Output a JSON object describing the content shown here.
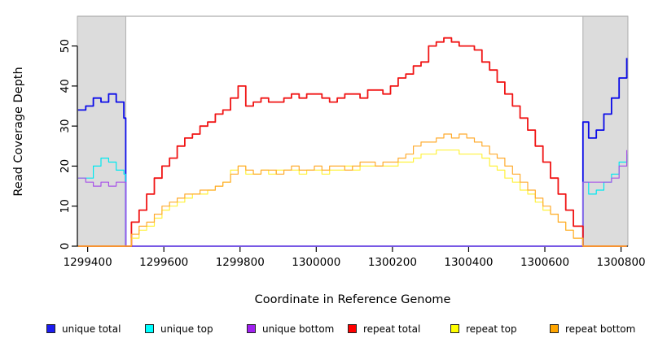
{
  "figure": {
    "background_color": "#FFFFFF",
    "frame_line_color": "#ADADAD",
    "axis_color": "#000000",
    "shaded_region_fill": "#DCDCDC",
    "shaded_region_border": "#ADADAD"
  },
  "chart_data": {
    "type": "line",
    "title": "",
    "xlabel": "Coordinate in Reference Genome",
    "ylabel": "Read Coverage Depth",
    "xlim": [
      1299373,
      1300818
    ],
    "ylim": [
      0,
      57
    ],
    "x_ticks": [
      1299400,
      1299600,
      1299800,
      1300000,
      1300200,
      1300400,
      1300600,
      1300800
    ],
    "y_ticks": [
      0,
      10,
      20,
      30,
      40,
      50
    ],
    "grid": false,
    "line_style": "step-after",
    "legend_position": "bottom",
    "shaded_regions": [
      {
        "x0": 1299373,
        "x1": 1299500
      },
      {
        "x0": 1300700,
        "x1": 1300818
      }
    ],
    "x": [
      1299375,
      1299395,
      1299415,
      1299435,
      1299455,
      1299475,
      1299495,
      1299500,
      1299515,
      1299535,
      1299555,
      1299575,
      1299595,
      1299615,
      1299635,
      1299655,
      1299675,
      1299695,
      1299715,
      1299735,
      1299755,
      1299775,
      1299795,
      1299815,
      1299835,
      1299855,
      1299875,
      1299895,
      1299915,
      1299935,
      1299955,
      1299975,
      1299995,
      1300015,
      1300035,
      1300055,
      1300075,
      1300095,
      1300115,
      1300135,
      1300155,
      1300175,
      1300195,
      1300215,
      1300235,
      1300255,
      1300275,
      1300295,
      1300315,
      1300335,
      1300355,
      1300375,
      1300395,
      1300415,
      1300435,
      1300455,
      1300475,
      1300495,
      1300515,
      1300535,
      1300555,
      1300575,
      1300595,
      1300615,
      1300635,
      1300655,
      1300675,
      1300700,
      1300715,
      1300735,
      1300755,
      1300775,
      1300795,
      1300815
    ],
    "series": [
      {
        "name": "unique total",
        "color": "#0B0BE8",
        "width": 1.8,
        "values": [
          34,
          35,
          37,
          36,
          38,
          36,
          32,
          0,
          0,
          0,
          0,
          0,
          0,
          0,
          0,
          0,
          0,
          0,
          0,
          0,
          0,
          0,
          0,
          0,
          0,
          0,
          0,
          0,
          0,
          0,
          0,
          0,
          0,
          0,
          0,
          0,
          0,
          0,
          0,
          0,
          0,
          0,
          0,
          0,
          0,
          0,
          0,
          0,
          0,
          0,
          0,
          0,
          0,
          0,
          0,
          0,
          0,
          0,
          0,
          0,
          0,
          0,
          0,
          0,
          0,
          0,
          0,
          31,
          27,
          29,
          33,
          37,
          42,
          47
        ]
      },
      {
        "name": "unique top",
        "color": "#00E8F0",
        "width": 1.2,
        "values": [
          17,
          17,
          20,
          22,
          21,
          19,
          18,
          0,
          0,
          0,
          0,
          0,
          0,
          0,
          0,
          0,
          0,
          0,
          0,
          0,
          0,
          0,
          0,
          0,
          0,
          0,
          0,
          0,
          0,
          0,
          0,
          0,
          0,
          0,
          0,
          0,
          0,
          0,
          0,
          0,
          0,
          0,
          0,
          0,
          0,
          0,
          0,
          0,
          0,
          0,
          0,
          0,
          0,
          0,
          0,
          0,
          0,
          0,
          0,
          0,
          0,
          0,
          0,
          0,
          0,
          0,
          0,
          16,
          13,
          14,
          16,
          18,
          21,
          23
        ]
      },
      {
        "name": "unique bottom",
        "color": "#A853E8",
        "width": 1.2,
        "values": [
          17,
          16,
          15,
          16,
          15,
          16,
          16,
          0,
          0,
          0,
          0,
          0,
          0,
          0,
          0,
          0,
          0,
          0,
          0,
          0,
          0,
          0,
          0,
          0,
          0,
          0,
          0,
          0,
          0,
          0,
          0,
          0,
          0,
          0,
          0,
          0,
          0,
          0,
          0,
          0,
          0,
          0,
          0,
          0,
          0,
          0,
          0,
          0,
          0,
          0,
          0,
          0,
          0,
          0,
          0,
          0,
          0,
          0,
          0,
          0,
          0,
          0,
          0,
          0,
          0,
          0,
          0,
          16,
          16,
          16,
          16,
          17,
          20,
          24
        ]
      },
      {
        "name": "repeat total",
        "color": "#F01414",
        "width": 1.8,
        "values": [
          0,
          0,
          0,
          0,
          0,
          0,
          0,
          0,
          6,
          9,
          13,
          17,
          20,
          22,
          25,
          27,
          28,
          30,
          31,
          33,
          34,
          37,
          40,
          35,
          36,
          37,
          36,
          36,
          37,
          38,
          37,
          38,
          38,
          37,
          36,
          37,
          38,
          38,
          37,
          39,
          39,
          38,
          40,
          42,
          43,
          45,
          46,
          50,
          51,
          52,
          51,
          50,
          50,
          49,
          46,
          44,
          41,
          38,
          35,
          32,
          29,
          25,
          21,
          17,
          13,
          9,
          5,
          0,
          0,
          0,
          0,
          0,
          0,
          0
        ]
      },
      {
        "name": "repeat top",
        "color": "#FFF23C",
        "width": 1.2,
        "values": [
          0,
          0,
          0,
          0,
          0,
          0,
          0,
          0,
          2,
          4,
          5,
          7,
          9,
          10,
          11,
          12,
          13,
          13,
          14,
          15,
          16,
          19,
          20,
          18,
          18,
          19,
          18,
          19,
          19,
          19,
          18,
          19,
          19,
          18,
          19,
          19,
          20,
          19,
          20,
          20,
          20,
          20,
          20,
          21,
          21,
          22,
          23,
          23,
          24,
          24,
          24,
          23,
          23,
          23,
          22,
          20,
          19,
          17,
          16,
          14,
          13,
          11,
          9,
          8,
          6,
          4,
          2,
          0,
          0,
          0,
          0,
          0,
          0,
          0
        ]
      },
      {
        "name": "repeat bottom",
        "color": "#FFAB2E",
        "width": 1.2,
        "values": [
          0,
          0,
          0,
          0,
          0,
          0,
          0,
          0,
          3,
          5,
          6,
          8,
          10,
          11,
          12,
          13,
          13,
          14,
          14,
          15,
          16,
          18,
          20,
          19,
          18,
          19,
          19,
          18,
          19,
          20,
          19,
          19,
          20,
          19,
          20,
          20,
          19,
          20,
          21,
          21,
          20,
          21,
          21,
          22,
          23,
          25,
          26,
          26,
          27,
          28,
          27,
          28,
          27,
          26,
          25,
          23,
          22,
          20,
          18,
          16,
          14,
          12,
          10,
          8,
          6,
          4,
          2,
          0,
          0,
          0,
          0,
          0,
          0,
          0
        ]
      }
    ]
  },
  "legend": {
    "swatch_colors": [
      "#1C1CF0",
      "#00FFFF",
      "#A020F0",
      "#FF0000",
      "#FFFF00",
      "#FFA500"
    ],
    "labels": [
      "unique total",
      "unique top",
      "unique bottom",
      "repeat total",
      "repeat top",
      "repeat bottom"
    ]
  }
}
